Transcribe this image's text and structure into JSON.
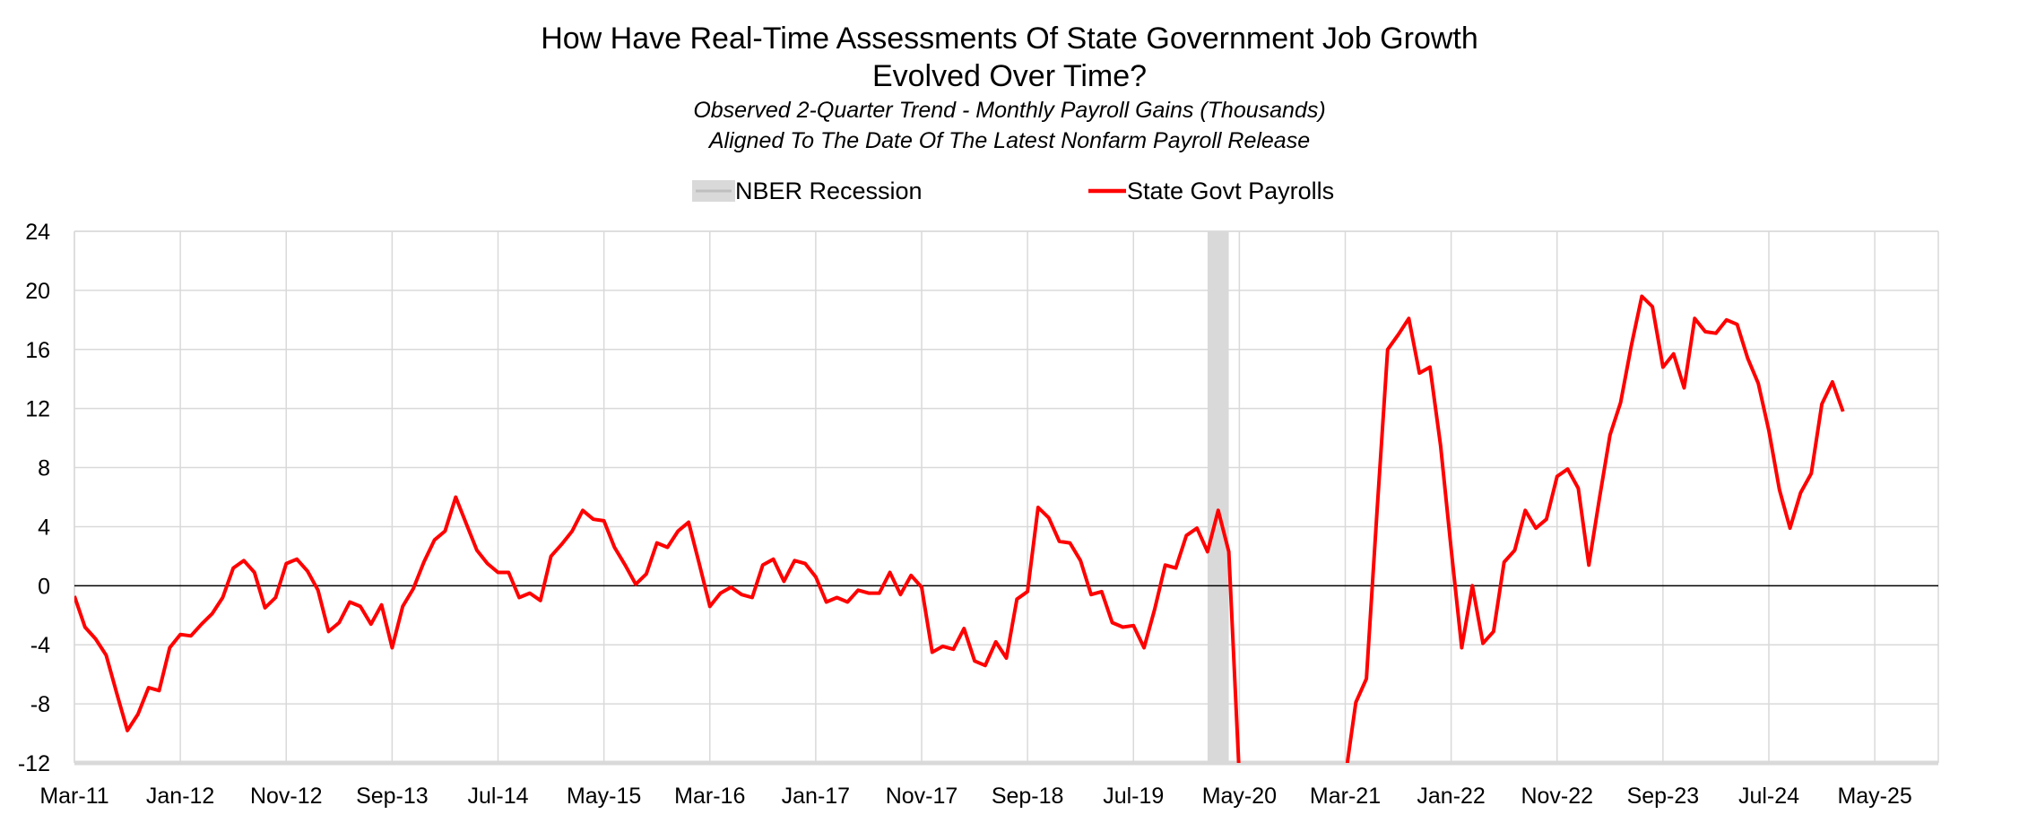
{
  "chart_data": {
    "type": "line",
    "title": "How Have Real-Time Assessments Of State Government Job Growth Evolved Over Time?",
    "title_lines": [
      "How Have Real-Time Assessments Of State Government Job Growth",
      "Evolved Over Time?"
    ],
    "subtitle_lines": [
      "Observed 2-Quarter Trend - Monthly Payroll Gains (Thousands)",
      "Aligned To The Date Of The Latest Nonfarm Payroll Release"
    ],
    "legend": {
      "placement": "top-center",
      "entries": [
        {
          "label": "NBER Recession",
          "color": "#d9d9d9",
          "kind": "area"
        },
        {
          "label": "State Govt Payrolls",
          "color": "#ff0000",
          "kind": "line"
        }
      ]
    },
    "ylim": [
      -12,
      24
    ],
    "yticks": [
      24,
      20,
      16,
      12,
      8,
      4,
      0,
      -4,
      -8,
      -12
    ],
    "xlim": [
      "2011-03",
      "2025-11"
    ],
    "xticks": [
      "Mar-11",
      "Jan-12",
      "Nov-12",
      "Sep-13",
      "Jul-14",
      "May-15",
      "Mar-16",
      "Jan-17",
      "Nov-17",
      "Sep-18",
      "Jul-19",
      "May-20",
      "Mar-21",
      "Jan-22",
      "Nov-22",
      "Sep-23",
      "Jul-24",
      "May-25"
    ],
    "grid": true,
    "recession": {
      "name": "NBER Recession",
      "start": "2020-02",
      "end": "2020-04"
    },
    "series": [
      {
        "name": "State Govt Payrolls",
        "color": "#ff0000",
        "points": [
          [
            "2011-03",
            -0.7
          ],
          [
            "2011-04",
            -2.8
          ],
          [
            "2011-05",
            -3.6
          ],
          [
            "2011-06",
            -4.7
          ],
          [
            "2011-07",
            -7.3
          ],
          [
            "2011-08",
            -9.8
          ],
          [
            "2011-09",
            -8.7
          ],
          [
            "2011-10",
            -6.9
          ],
          [
            "2011-11",
            -7.1
          ],
          [
            "2011-12",
            -4.2
          ],
          [
            "2012-01",
            -3.3
          ],
          [
            "2012-02",
            -3.4
          ],
          [
            "2012-03",
            -2.6
          ],
          [
            "2012-04",
            -1.9
          ],
          [
            "2012-05",
            -0.8
          ],
          [
            "2012-06",
            1.2
          ],
          [
            "2012-07",
            1.7
          ],
          [
            "2012-08",
            0.9
          ],
          [
            "2012-09",
            -1.5
          ],
          [
            "2012-10",
            -0.8
          ],
          [
            "2012-11",
            1.5
          ],
          [
            "2012-12",
            1.8
          ],
          [
            "2013-01",
            1.0
          ],
          [
            "2013-02",
            -0.3
          ],
          [
            "2013-03",
            -3.1
          ],
          [
            "2013-04",
            -2.5
          ],
          [
            "2013-05",
            -1.1
          ],
          [
            "2013-06",
            -1.4
          ],
          [
            "2013-07",
            -2.6
          ],
          [
            "2013-08",
            -1.3
          ],
          [
            "2013-09",
            -4.2
          ],
          [
            "2013-10",
            -1.4
          ],
          [
            "2013-11",
            -0.2
          ],
          [
            "2013-12",
            1.6
          ],
          [
            "2014-01",
            3.1
          ],
          [
            "2014-02",
            3.7
          ],
          [
            "2014-03",
            6.0
          ],
          [
            "2014-04",
            4.2
          ],
          [
            "2014-05",
            2.4
          ],
          [
            "2014-06",
            1.5
          ],
          [
            "2014-07",
            0.9
          ],
          [
            "2014-08",
            0.9
          ],
          [
            "2014-09",
            -0.8
          ],
          [
            "2014-10",
            -0.5
          ],
          [
            "2014-11",
            -1.0
          ],
          [
            "2014-12",
            2.0
          ],
          [
            "2015-01",
            2.8
          ],
          [
            "2015-02",
            3.7
          ],
          [
            "2015-03",
            5.1
          ],
          [
            "2015-04",
            4.5
          ],
          [
            "2015-05",
            4.4
          ],
          [
            "2015-06",
            2.6
          ],
          [
            "2015-07",
            1.4
          ],
          [
            "2015-08",
            0.1
          ],
          [
            "2015-09",
            0.8
          ],
          [
            "2015-10",
            2.9
          ],
          [
            "2015-11",
            2.6
          ],
          [
            "2015-12",
            3.7
          ],
          [
            "2016-01",
            4.3
          ],
          [
            "2016-02",
            1.5
          ],
          [
            "2016-03",
            -1.4
          ],
          [
            "2016-04",
            -0.5
          ],
          [
            "2016-05",
            -0.1
          ],
          [
            "2016-06",
            -0.6
          ],
          [
            "2016-07",
            -0.8
          ],
          [
            "2016-08",
            1.4
          ],
          [
            "2016-09",
            1.8
          ],
          [
            "2016-10",
            0.3
          ],
          [
            "2016-11",
            1.7
          ],
          [
            "2016-12",
            1.5
          ],
          [
            "2017-01",
            0.6
          ],
          [
            "2017-02",
            -1.1
          ],
          [
            "2017-03",
            -0.8
          ],
          [
            "2017-04",
            -1.1
          ],
          [
            "2017-05",
            -0.3
          ],
          [
            "2017-06",
            -0.5
          ],
          [
            "2017-07",
            -0.5
          ],
          [
            "2017-08",
            0.9
          ],
          [
            "2017-09",
            -0.6
          ],
          [
            "2017-10",
            0.7
          ],
          [
            "2017-11",
            -0.1
          ],
          [
            "2017-12",
            -4.5
          ],
          [
            "2018-01",
            -4.1
          ],
          [
            "2018-02",
            -4.3
          ],
          [
            "2018-03",
            -2.9
          ],
          [
            "2018-04",
            -5.1
          ],
          [
            "2018-05",
            -5.4
          ],
          [
            "2018-06",
            -3.8
          ],
          [
            "2018-07",
            -4.9
          ],
          [
            "2018-08",
            -0.9
          ],
          [
            "2018-09",
            -0.4
          ],
          [
            "2018-10",
            5.3
          ],
          [
            "2018-11",
            4.6
          ],
          [
            "2018-12",
            3.0
          ],
          [
            "2019-01",
            2.9
          ],
          [
            "2019-02",
            1.7
          ],
          [
            "2019-03",
            -0.6
          ],
          [
            "2019-04",
            -0.4
          ],
          [
            "2019-05",
            -2.5
          ],
          [
            "2019-06",
            -2.8
          ],
          [
            "2019-07",
            -2.7
          ],
          [
            "2019-08",
            -4.2
          ],
          [
            "2019-09",
            -1.6
          ],
          [
            "2019-10",
            1.4
          ],
          [
            "2019-11",
            1.2
          ],
          [
            "2019-12",
            3.4
          ],
          [
            "2020-01",
            3.9
          ],
          [
            "2020-02",
            2.3
          ],
          [
            "2020-03",
            5.1
          ],
          [
            "2020-04",
            2.3
          ],
          [
            "2020-05",
            -13.0
          ],
          [
            "2021-03",
            -13.0
          ],
          [
            "2021-04",
            -7.9
          ],
          [
            "2021-05",
            -6.3
          ],
          [
            "2021-06",
            5.0
          ],
          [
            "2021-07",
            16.0
          ],
          [
            "2021-08",
            17.0
          ],
          [
            "2021-09",
            18.1
          ],
          [
            "2021-10",
            14.4
          ],
          [
            "2021-11",
            14.8
          ],
          [
            "2021-12",
            9.5
          ],
          [
            "2022-01",
            2.5
          ],
          [
            "2022-02",
            -4.2
          ],
          [
            "2022-03",
            0.0
          ],
          [
            "2022-04",
            -3.9
          ],
          [
            "2022-05",
            -3.1
          ],
          [
            "2022-06",
            1.6
          ],
          [
            "2022-07",
            2.4
          ],
          [
            "2022-08",
            5.1
          ],
          [
            "2022-09",
            3.9
          ],
          [
            "2022-10",
            4.5
          ],
          [
            "2022-11",
            7.4
          ],
          [
            "2022-12",
            7.9
          ],
          [
            "2023-01",
            6.6
          ],
          [
            "2023-02",
            1.4
          ],
          [
            "2023-03",
            5.9
          ],
          [
            "2023-04",
            10.2
          ],
          [
            "2023-05",
            12.4
          ],
          [
            "2023-06",
            16.2
          ],
          [
            "2023-07",
            19.6
          ],
          [
            "2023-08",
            18.9
          ],
          [
            "2023-09",
            14.8
          ],
          [
            "2023-10",
            15.7
          ],
          [
            "2023-11",
            13.4
          ],
          [
            "2023-12",
            18.1
          ],
          [
            "2024-01",
            17.2
          ],
          [
            "2024-02",
            17.1
          ],
          [
            "2024-03",
            18.0
          ],
          [
            "2024-04",
            17.7
          ],
          [
            "2024-05",
            15.4
          ],
          [
            "2024-06",
            13.7
          ],
          [
            "2024-07",
            10.5
          ],
          [
            "2024-08",
            6.5
          ],
          [
            "2024-09",
            3.9
          ],
          [
            "2024-10",
            6.3
          ],
          [
            "2024-11",
            7.6
          ],
          [
            "2024-12",
            12.3
          ],
          [
            "2025-01",
            13.8
          ],
          [
            "2025-02",
            11.8
          ]
        ]
      }
    ]
  }
}
